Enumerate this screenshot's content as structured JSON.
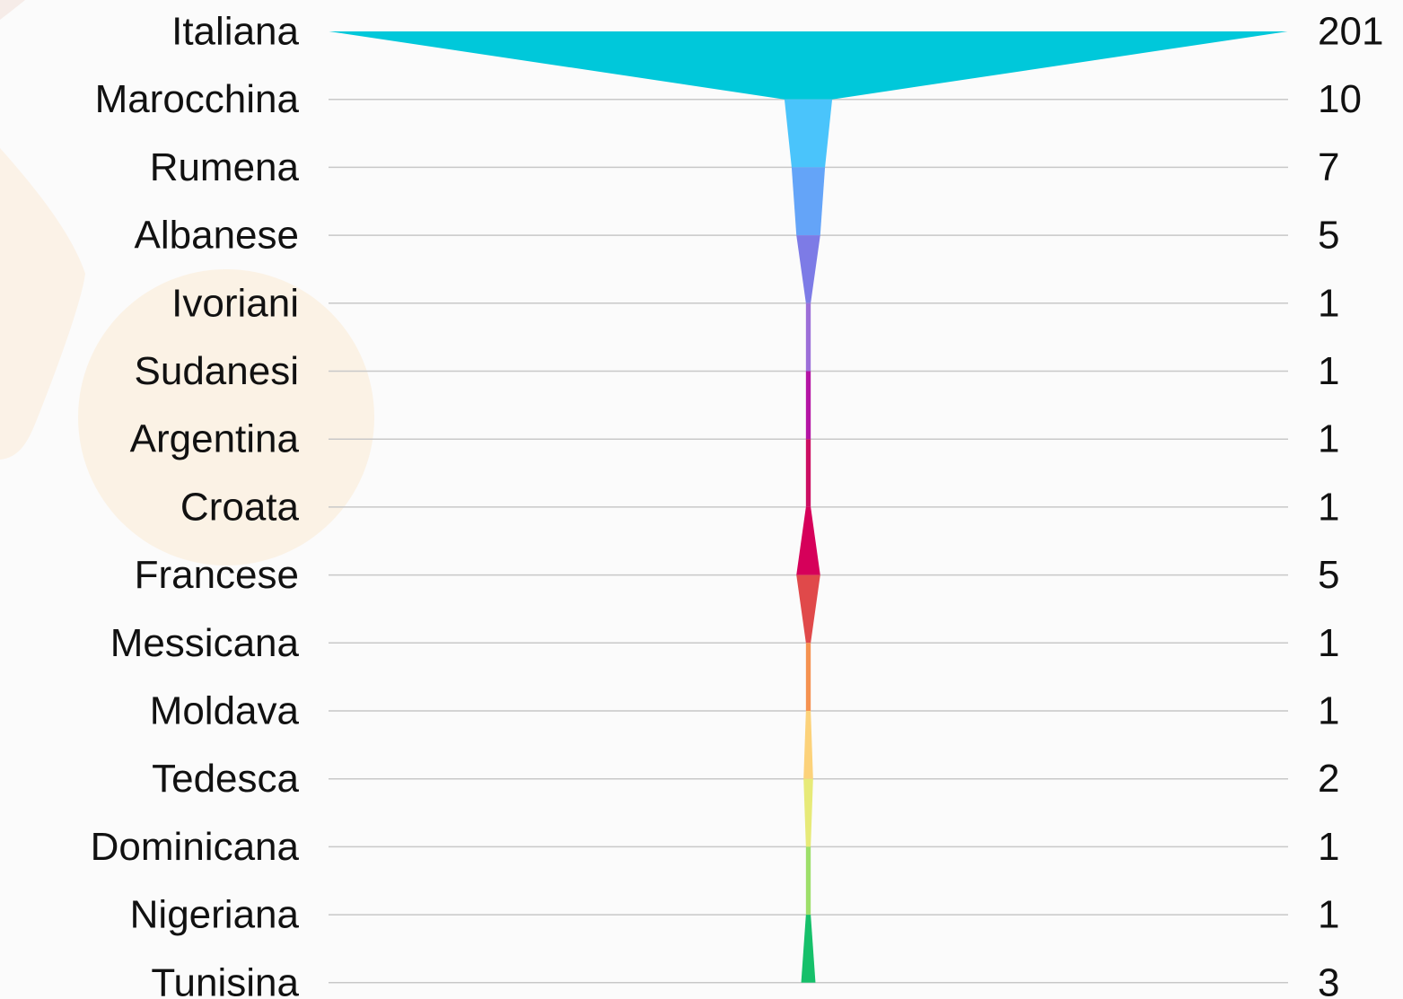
{
  "chart_data": {
    "type": "funnel",
    "categories": [
      "Italiana",
      "Marocchina",
      "Rumena",
      "Albanese",
      "Ivoriani",
      "Sudanesi",
      "Argentina",
      "Croata",
      "Francese",
      "Messicana",
      "Moldava",
      "Tedesca",
      "Dominicana",
      "Nigeriana",
      "Tunisina"
    ],
    "values": [
      201,
      10,
      7,
      5,
      1,
      1,
      1,
      1,
      5,
      1,
      1,
      2,
      1,
      1,
      3
    ],
    "colors": [
      "#00c8da",
      "#4ac4fb",
      "#64a4f8",
      "#7d7be6",
      "#9c6fd8",
      "#b414a4",
      "#cc0e62",
      "#d6005a",
      "#e0494a",
      "#f59250",
      "#fcd27a",
      "#e7ea78",
      "#9ddf6a",
      "#16c06a",
      "#22938a"
    ],
    "grid": true,
    "legend": "none"
  }
}
